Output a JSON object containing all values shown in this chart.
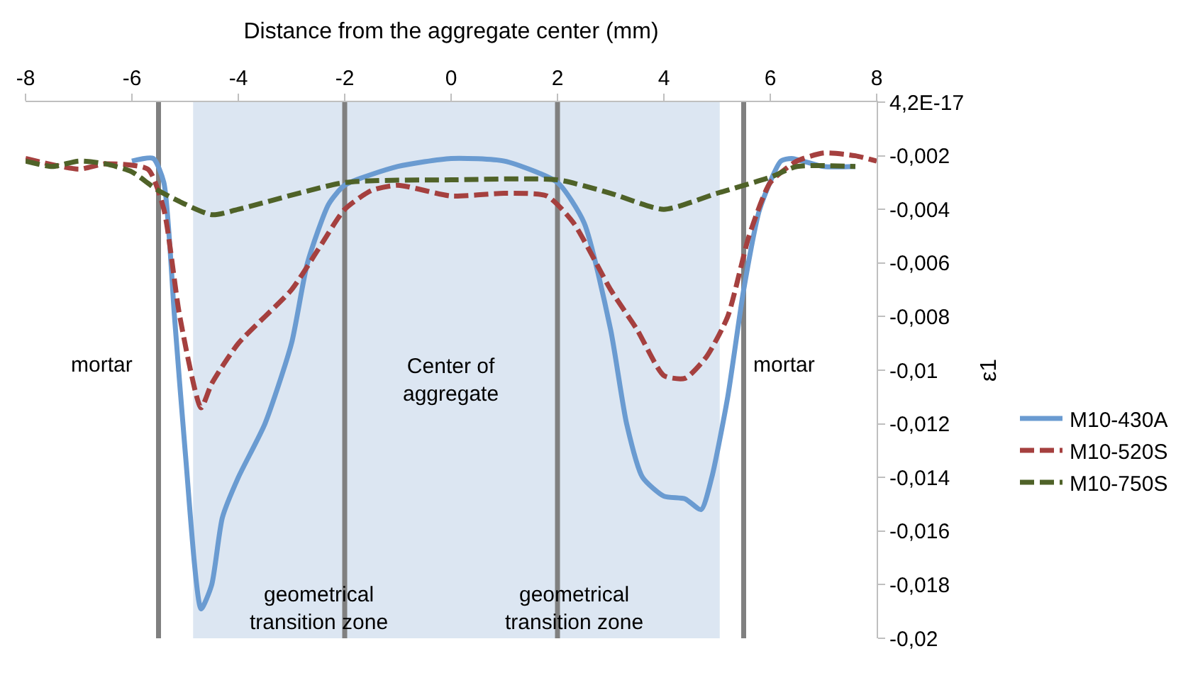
{
  "chart_data": {
    "type": "line",
    "xlabel": "Distance from the aggregate center (mm)",
    "ylabel": "ε1",
    "xlim": [
      -8,
      8
    ],
    "xticks": [
      -8,
      -6,
      -4,
      -2,
      0,
      2,
      4,
      6,
      8
    ],
    "ylim": [
      -0.02,
      4.2e-17
    ],
    "yticks": [
      {
        "value": 4.2e-17,
        "label": "4,2E-17"
      },
      {
        "value": -0.002,
        "label": "-0,002"
      },
      {
        "value": -0.004,
        "label": "-0,004"
      },
      {
        "value": -0.006,
        "label": "-0,006"
      },
      {
        "value": -0.008,
        "label": "-0,008"
      },
      {
        "value": -0.01,
        "label": "-0,01"
      },
      {
        "value": -0.012,
        "label": "-0,012"
      },
      {
        "value": -0.014,
        "label": "-0,014"
      },
      {
        "value": -0.016,
        "label": "-0,016"
      },
      {
        "value": -0.018,
        "label": "-0,018"
      },
      {
        "value": -0.02,
        "label": "-0,02"
      }
    ],
    "grid": false,
    "legend": "right",
    "marker": "none",
    "bands": [
      {
        "axis": "x",
        "from": -4.85,
        "to": 5.05,
        "color": "#dce6f2"
      }
    ],
    "ref_lines": [
      {
        "axis": "x",
        "value": -5.5,
        "color": "#808080"
      },
      {
        "axis": "x",
        "value": -2,
        "color": "#808080"
      },
      {
        "axis": "x",
        "value": 2,
        "color": "#808080"
      },
      {
        "axis": "x",
        "value": 5.5,
        "color": "#808080"
      }
    ],
    "annotations": [
      "mortar",
      "Center of aggregate",
      "mortar",
      "geometrical transition zone",
      "geometrical transition zone"
    ],
    "series": [
      {
        "name": "M10-430A",
        "color": "#6a9bd1",
        "line_style": "solid",
        "x": [
          -6,
          -5.6,
          -5.4,
          -5.2,
          -5.0,
          -4.7,
          -4.5,
          -4.3,
          -4,
          -3.5,
          -3,
          -2.7,
          -2.3,
          -2,
          -1,
          0,
          1,
          2,
          2.5,
          3,
          3.3,
          3.6,
          4,
          4.4,
          4.7,
          4.9,
          5.2,
          5.5,
          5.8,
          6.2,
          6.4,
          7,
          7.6
        ],
        "values": [
          -0.0022,
          -0.0021,
          -0.003,
          -0.008,
          -0.013,
          -0.0189,
          -0.018,
          -0.0155,
          -0.014,
          -0.012,
          -0.009,
          -0.006,
          -0.0038,
          -0.0031,
          -0.0024,
          -0.0021,
          -0.0022,
          -0.003,
          -0.0045,
          -0.0085,
          -0.012,
          -0.014,
          -0.0147,
          -0.0148,
          -0.0152,
          -0.014,
          -0.011,
          -0.007,
          -0.004,
          -0.0022,
          -0.0021,
          -0.0024,
          -0.0024
        ]
      },
      {
        "name": "M10-520S",
        "color": "#a5403f",
        "line_style": "dashed",
        "x": [
          -8,
          -7,
          -6.5,
          -5.7,
          -5.4,
          -5.1,
          -4.7,
          -4.5,
          -4,
          -3,
          -2.5,
          -2,
          -1.5,
          -1,
          0,
          1,
          1.8,
          2.3,
          3,
          3.5,
          4,
          4.4,
          4.8,
          5.2,
          5.6,
          6,
          6.5,
          7,
          7.6,
          8
        ],
        "values": [
          -0.0021,
          -0.0025,
          -0.0023,
          -0.0025,
          -0.004,
          -0.008,
          -0.0114,
          -0.0105,
          -0.009,
          -0.007,
          -0.0055,
          -0.004,
          -0.0033,
          -0.0031,
          -0.0035,
          -0.0034,
          -0.0035,
          -0.0045,
          -0.007,
          -0.0085,
          -0.0102,
          -0.0103,
          -0.0095,
          -0.008,
          -0.005,
          -0.003,
          -0.0022,
          -0.0019,
          -0.002,
          -0.0022
        ]
      },
      {
        "name": "M10-750S",
        "color": "#4f6228",
        "line_style": "dashed",
        "x": [
          -8,
          -7.5,
          -7,
          -6.5,
          -6,
          -5.5,
          -4.5,
          -4,
          -2,
          0,
          2,
          3,
          4,
          5,
          6,
          6.5,
          7.6
        ],
        "values": [
          -0.0022,
          -0.0024,
          -0.0022,
          -0.0023,
          -0.0026,
          -0.0033,
          -0.0042,
          -0.004,
          -0.003,
          -0.0029,
          -0.0029,
          -0.0034,
          -0.004,
          -0.0034,
          -0.0028,
          -0.0024,
          -0.0024
        ]
      }
    ]
  }
}
